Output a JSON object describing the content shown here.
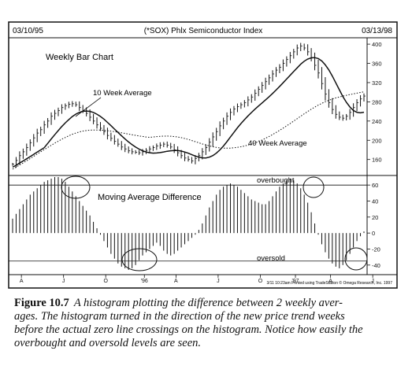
{
  "chart_data": {
    "type": "bar",
    "title": "(*SOX) Phlx Semiconductor Index",
    "date_start": "03/10/95",
    "date_end": "03/13/98",
    "price_panel": {
      "label": "Weekly Bar Chart",
      "ylim": [
        130,
        410
      ],
      "yticks": [
        "400",
        "360",
        "320",
        "280",
        "240",
        "200",
        "160"
      ],
      "ytick_values": [
        400,
        360,
        320,
        280,
        240,
        200,
        160
      ],
      "series": [
        {
          "name": "10 Week Average",
          "annotation": "10 Week Average"
        },
        {
          "name": "40 Week Average",
          "annotation": "40 Week Average"
        }
      ],
      "prices": [
        150,
        158,
        168,
        176,
        185,
        195,
        205,
        215,
        222,
        232,
        240,
        250,
        256,
        262,
        268,
        272,
        275,
        276,
        274,
        268,
        262,
        256,
        248,
        240,
        232,
        225,
        218,
        210,
        204,
        198,
        192,
        186,
        182,
        178,
        176,
        175,
        174,
        176,
        179,
        182,
        185,
        188,
        190,
        192,
        190,
        186,
        180,
        174,
        168,
        163,
        160,
        157,
        162,
        168,
        176,
        185,
        196,
        207,
        218,
        230,
        240,
        250,
        258,
        265,
        270,
        274,
        278,
        284,
        290,
        298,
        306,
        314,
        322,
        330,
        338,
        346,
        352,
        360,
        368,
        376,
        384,
        392,
        396,
        392,
        384,
        372,
        356,
        340,
        318,
        296,
        278,
        264,
        254,
        248,
        246,
        250,
        258,
        268,
        278,
        286,
        292
      ]
    },
    "oscillator_panel": {
      "label": "Moving Average Difference",
      "ylim": [
        -50,
        70
      ],
      "yticks": [
        "60",
        "40",
        "20",
        "0",
        "-20",
        "-40"
      ],
      "ytick_values": [
        60,
        40,
        20,
        0,
        -20,
        -40
      ],
      "overbought_label": "overbought",
      "oversold_label": "oversold",
      "overbought_level": 60,
      "oversold_level": -35,
      "values": [
        18,
        24,
        30,
        36,
        42,
        48,
        52,
        56,
        60,
        64,
        66,
        68,
        70,
        70,
        68,
        64,
        58,
        52,
        46,
        40,
        34,
        28,
        22,
        14,
        6,
        -2,
        -10,
        -18,
        -26,
        -32,
        -38,
        -42,
        -44,
        -46,
        -44,
        -40,
        -34,
        -28,
        -24,
        -20,
        -16,
        -12,
        -16,
        -22,
        -26,
        -28,
        -26,
        -22,
        -18,
        -14,
        -10,
        -6,
        -2,
        4,
        12,
        22,
        32,
        40,
        48,
        54,
        58,
        60,
        62,
        60,
        58,
        54,
        50,
        46,
        42,
        40,
        38,
        36,
        36,
        40,
        46,
        52,
        58,
        62,
        66,
        68,
        66,
        62,
        56,
        48,
        38,
        26,
        12,
        -2,
        -14,
        -24,
        -32,
        -38,
        -42,
        -44,
        -40,
        -34,
        -26,
        -18,
        -10,
        -4,
        2
      ]
    },
    "x_tick_labels": [
      "A",
      "J",
      "O",
      "'96",
      "A",
      "J",
      "O",
      "'97",
      "A",
      "J",
      "O",
      "'98"
    ],
    "x_tick_positions": [
      2.5,
      14.5,
      26.5,
      37.5,
      46.5,
      58.5,
      70.5,
      80.5,
      90.5,
      102.5,
      114.5,
      123.5
    ],
    "footer": "3/11 10:23am Printed using TradeStation © Omega Research, Inc. 1997"
  },
  "caption": {
    "figure_label": "Figure 10.7",
    "line1": "A histogram plotting the difference between 2 weekly aver-",
    "line2": "ages. The histogram turned in the direction of the new price trend weeks",
    "line3": "before the actual zero line crossings on the histogram. Notice how easily the",
    "line4": "overbought and oversold levels are seen."
  },
  "colors": {
    "ink": "#111111",
    "background": "#ffffff"
  }
}
